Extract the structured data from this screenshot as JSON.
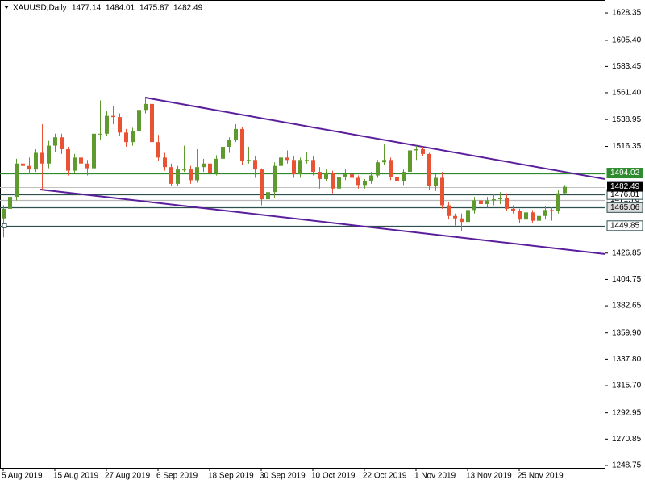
{
  "chart_data": {
    "type": "candlestick",
    "title": "XAUUSD,Daily",
    "bull_color": "#5e9a2e",
    "bear_color": "#ea5234",
    "ylim": [
      1246.7,
      1639.2
    ],
    "yticks": [
      {
        "value": 1628.35,
        "label": "1628.35"
      },
      {
        "value": 1605.4,
        "label": "1605.40"
      },
      {
        "value": 1583.45,
        "label": "1583.45"
      },
      {
        "value": 1561.4,
        "label": "1561.40"
      },
      {
        "value": 1538.95,
        "label": "1538.95"
      },
      {
        "value": 1516.35,
        "label": "1516.35"
      },
      {
        "value": 1426.85,
        "label": "1426.85"
      },
      {
        "value": 1404.75,
        "label": "1404.75"
      },
      {
        "value": 1382.65,
        "label": "1382.65"
      },
      {
        "value": 1359.9,
        "label": "1359.90"
      },
      {
        "value": 1337.8,
        "label": "1337.80"
      },
      {
        "value": 1315.7,
        "label": "1315.70"
      },
      {
        "value": 1292.95,
        "label": "1292.95"
      },
      {
        "value": 1270.85,
        "label": "1270.85"
      },
      {
        "value": 1248.75,
        "label": "1248.75"
      }
    ],
    "categories": [
      "5 Aug 2019",
      null,
      null,
      null,
      null,
      null,
      null,
      null,
      "15 Aug 2019",
      null,
      null,
      null,
      null,
      null,
      null,
      null,
      "27 Aug 2019",
      null,
      null,
      null,
      null,
      null,
      null,
      null,
      "6 Sep 2019",
      null,
      null,
      null,
      null,
      null,
      null,
      null,
      "18 Sep 2019",
      null,
      null,
      null,
      null,
      null,
      null,
      null,
      "30 Sep 2019",
      null,
      null,
      null,
      null,
      null,
      null,
      null,
      "10 Oct 2019",
      null,
      null,
      null,
      null,
      null,
      null,
      null,
      "22 Oct 2019",
      null,
      null,
      null,
      null,
      null,
      null,
      null,
      "1 Nov 2019",
      null,
      null,
      null,
      null,
      null,
      null,
      null,
      "13 Nov 2019",
      null,
      null,
      null,
      null,
      null,
      null,
      null,
      "25 Nov 2019",
      null,
      null,
      null,
      null,
      null,
      null,
      null
    ],
    "candles": [
      [
        1456,
        1467,
        1440,
        1464
      ],
      [
        1464,
        1477,
        1460,
        1474
      ],
      [
        1474,
        1506,
        1471,
        1502
      ],
      [
        1502,
        1510,
        1492,
        1500
      ],
      [
        1500,
        1507,
        1493,
        1497
      ],
      [
        1497,
        1514,
        1495,
        1511
      ],
      [
        1511,
        1535,
        1480,
        1502
      ],
      [
        1502,
        1521,
        1498,
        1517
      ],
      [
        1517,
        1527,
        1512,
        1524
      ],
      [
        1524,
        1527,
        1510,
        1514
      ],
      [
        1514,
        1516,
        1492,
        1496
      ],
      [
        1496,
        1510,
        1494,
        1507
      ],
      [
        1507,
        1509,
        1498,
        1502
      ],
      [
        1502,
        1505,
        1492,
        1498
      ],
      [
        1498,
        1529,
        1495,
        1527
      ],
      [
        1527,
        1555,
        1522,
        1527
      ],
      [
        1527,
        1546,
        1525,
        1542
      ],
      [
        1542,
        1550,
        1535,
        1541
      ],
      [
        1541,
        1544,
        1525,
        1528
      ],
      [
        1528,
        1531,
        1516,
        1520
      ],
      [
        1520,
        1532,
        1517,
        1529
      ],
      [
        1529,
        1550,
        1525,
        1547
      ],
      [
        1547,
        1557,
        1544,
        1552
      ],
      [
        1552,
        1554,
        1515,
        1520
      ],
      [
        1520,
        1526,
        1504,
        1507
      ],
      [
        1507,
        1511,
        1496,
        1499
      ],
      [
        1499,
        1502,
        1483,
        1485
      ],
      [
        1485,
        1500,
        1483,
        1497
      ],
      [
        1497,
        1517,
        1495,
        1497
      ],
      [
        1497,
        1500,
        1485,
        1488
      ],
      [
        1488,
        1514,
        1486,
        1499
      ],
      [
        1499,
        1506,
        1495,
        1502
      ],
      [
        1502,
        1512,
        1491,
        1494
      ],
      [
        1494,
        1509,
        1492,
        1506
      ],
      [
        1506,
        1519,
        1502,
        1516
      ],
      [
        1516,
        1524,
        1511,
        1522
      ],
      [
        1522,
        1535,
        1520,
        1531
      ],
      [
        1531,
        1533,
        1501,
        1504
      ],
      [
        1504,
        1516,
        1502,
        1505
      ],
      [
        1505,
        1508,
        1490,
        1497
      ],
      [
        1497,
        1498,
        1467,
        1472
      ],
      [
        1472,
        1481,
        1459,
        1478
      ],
      [
        1478,
        1503,
        1473,
        1500
      ],
      [
        1500,
        1513,
        1497,
        1507
      ],
      [
        1507,
        1513,
        1502,
        1505
      ],
      [
        1505,
        1508,
        1490,
        1493
      ],
      [
        1493,
        1507,
        1490,
        1505
      ],
      [
        1505,
        1512,
        1502,
        1505
      ],
      [
        1505,
        1508,
        1492,
        1495
      ],
      [
        1495,
        1499,
        1481,
        1489
      ],
      [
        1489,
        1497,
        1487,
        1494
      ],
      [
        1494,
        1496,
        1477,
        1481
      ],
      [
        1481,
        1494,
        1479,
        1491
      ],
      [
        1491,
        1497,
        1488,
        1493
      ],
      [
        1493,
        1496,
        1486,
        1490
      ],
      [
        1490,
        1492,
        1481,
        1484
      ],
      [
        1484,
        1489,
        1481,
        1487
      ],
      [
        1487,
        1495,
        1485,
        1492
      ],
      [
        1492,
        1505,
        1490,
        1503
      ],
      [
        1503,
        1518,
        1501,
        1505
      ],
      [
        1505,
        1507,
        1488,
        1491
      ],
      [
        1491,
        1494,
        1483,
        1487
      ],
      [
        1487,
        1497,
        1484,
        1495
      ],
      [
        1495,
        1515,
        1493,
        1513
      ],
      [
        1513,
        1517,
        1505,
        1514
      ],
      [
        1514,
        1516,
        1508,
        1510
      ],
      [
        1510,
        1511,
        1480,
        1483
      ],
      [
        1483,
        1493,
        1479,
        1490
      ],
      [
        1490,
        1495,
        1464,
        1467
      ],
      [
        1467,
        1470,
        1455,
        1458
      ],
      [
        1458,
        1460,
        1450,
        1456
      ],
      [
        1456,
        1460,
        1445,
        1453
      ],
      [
        1453,
        1465,
        1450,
        1463
      ],
      [
        1463,
        1474,
        1460,
        1471
      ],
      [
        1471,
        1474,
        1464,
        1468
      ],
      [
        1468,
        1474,
        1465,
        1471
      ],
      [
        1471,
        1476,
        1467,
        1472
      ],
      [
        1472,
        1478,
        1468,
        1473
      ],
      [
        1473,
        1477,
        1462,
        1464
      ],
      [
        1464,
        1467,
        1460,
        1462
      ],
      [
        1462,
        1464,
        1452,
        1455
      ],
      [
        1455,
        1464,
        1452,
        1461
      ],
      [
        1461,
        1463,
        1452,
        1454
      ],
      [
        1454,
        1459,
        1452,
        1458
      ],
      [
        1458,
        1466,
        1455,
        1463
      ],
      [
        1463,
        1465,
        1454,
        1462
      ],
      [
        1462,
        1480,
        1460,
        1477
      ],
      [
        1477.14,
        1484.01,
        1475.87,
        1482.49
      ]
    ],
    "levels": [
      {
        "value": 1471.7,
        "label": "1471.70",
        "color": "#b8b8b8",
        "label_bg": "#ffffff",
        "label_color": "#000000"
      },
      {
        "value": 1494.02,
        "color": "#2e8b2e",
        "label_bg": "#2e8b2e",
        "label_color": "#ffffff"
      },
      {
        "value": 1476.01,
        "color": "#2f4f4f",
        "label_bg": "#ffffff",
        "label_color": "#000000"
      },
      {
        "value": 1465.06,
        "color": "#2f4f4f",
        "label_bg": "#dcdcdc",
        "label_color": "#000000"
      },
      {
        "value": 1449.85,
        "color": "#2f4f4f",
        "label_bg": "#ffffff",
        "label_color": "#000000"
      }
    ],
    "last_price_color": "#c0c0c0",
    "trendlines": [
      {
        "points": [
          [
            22,
            1557.3
          ],
          [
            93.25,
            1489.0
          ]
        ],
        "color": "#5a1e9c"
      },
      {
        "points": [
          [
            5.75,
            1480.2
          ],
          [
            93.25,
            1426.1
          ]
        ],
        "color": "#5a1e9c"
      }
    ]
  }
}
